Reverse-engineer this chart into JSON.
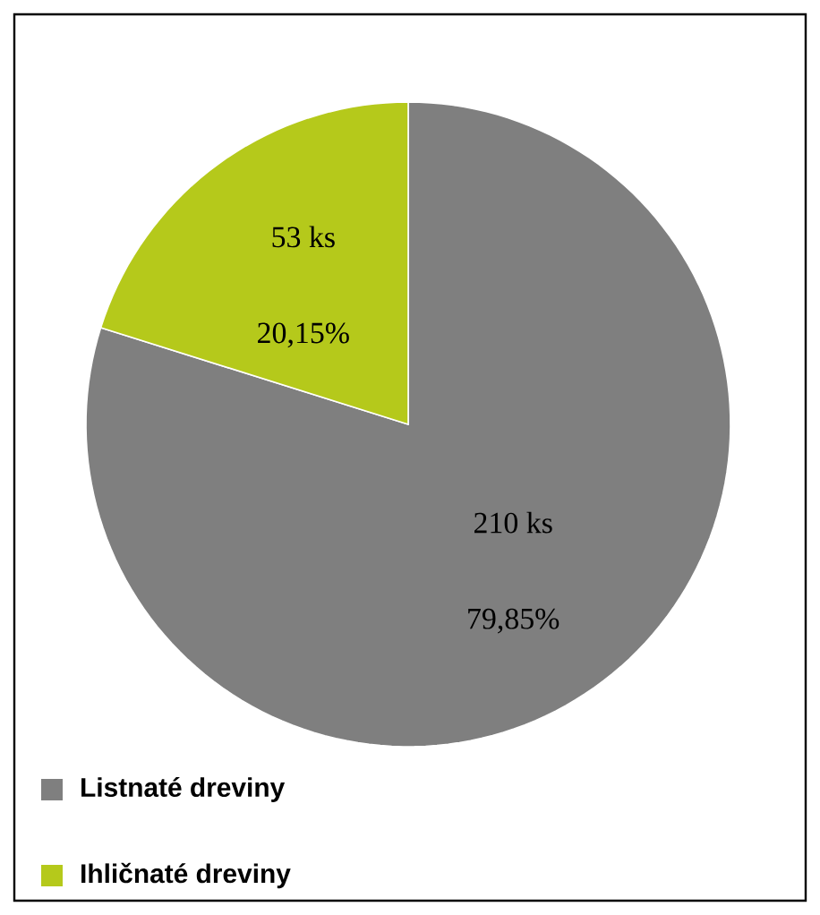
{
  "chart_data": {
    "type": "pie",
    "categories": [
      "Listnaté dreviny",
      "Ihličnaté dreviny"
    ],
    "values": [
      79.85,
      20.15
    ],
    "colors": [
      "#7f7f7f",
      "#b5c91b"
    ],
    "value_labels": [
      [
        "210 ks",
        "79,85%"
      ],
      [
        "53 ks",
        "20,15%"
      ]
    ],
    "legend": "bottom"
  }
}
